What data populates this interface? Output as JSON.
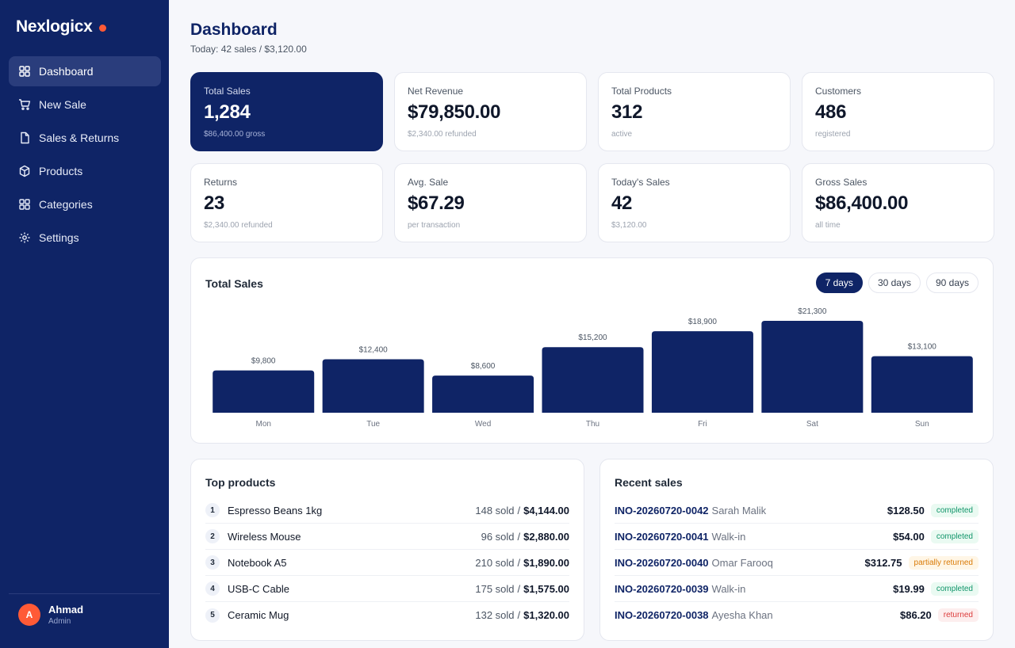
{
  "brand": {
    "name": "Nexlogicx",
    "dot_color": "#ff5a36"
  },
  "sidebar": {
    "items": [
      {
        "label": "Dashboard",
        "icon": "grid-icon",
        "active": true
      },
      {
        "label": "New Sale",
        "icon": "cart-icon"
      },
      {
        "label": "Sales & Returns",
        "icon": "document-icon"
      },
      {
        "label": "Products",
        "icon": "box-icon"
      },
      {
        "label": "Categories",
        "icon": "grid-icon"
      },
      {
        "label": "Settings",
        "icon": "gear-icon"
      }
    ],
    "user": {
      "initial": "A",
      "name": "Ahmad",
      "role": "Admin"
    }
  },
  "header": {
    "title": "Dashboard",
    "subtitle": "Today: 42 sales / $3,120.00"
  },
  "stats": [
    {
      "label": "Total Sales",
      "value": "1,284",
      "note": "$86,400.00 gross"
    },
    {
      "label": "Net Revenue",
      "value": "$79,850.00",
      "note": "$2,340.00 refunded"
    },
    {
      "label": "Total Products",
      "value": "312",
      "note": "active"
    },
    {
      "label": "Customers",
      "value": "486",
      "note": "registered"
    },
    {
      "label": "Returns",
      "value": "23",
      "note": "$2,340.00 refunded"
    },
    {
      "label": "Avg. Sale",
      "value": "$67.29",
      "note": "per transaction"
    },
    {
      "label": "Today's Sales",
      "value": "42",
      "note": "$3,120.00"
    },
    {
      "label": "Gross Sales",
      "value": "$86,400.00",
      "note": "all time"
    }
  ],
  "chart_section": {
    "title": "Total Sales",
    "ranges": [
      "7 days",
      "30 days",
      "90 days"
    ],
    "active_range": "7 days"
  },
  "chart_data": {
    "type": "bar",
    "categories": [
      "Mon",
      "Tue",
      "Wed",
      "Thu",
      "Fri",
      "Sat",
      "Sun"
    ],
    "values": [
      9800,
      12400,
      8600,
      15200,
      18900,
      21300,
      13100
    ],
    "value_labels": [
      "$9,800",
      "$12,400",
      "$8,600",
      "$15,200",
      "$18,900",
      "$21,300",
      "$13,100"
    ],
    "title": "Total Sales",
    "xlabel": "",
    "ylabel": "",
    "grid": false,
    "bar_color": "#0f2466"
  },
  "top_products": {
    "title": "Top products",
    "items": [
      {
        "rank": "1",
        "name": "Espresso Beans 1kg",
        "sold": "148 sold",
        "amount": "$4,144.00"
      },
      {
        "rank": "2",
        "name": "Wireless Mouse",
        "sold": "96 sold",
        "amount": "$2,880.00"
      },
      {
        "rank": "3",
        "name": "Notebook A5",
        "sold": "210 sold",
        "amount": "$1,890.00"
      },
      {
        "rank": "4",
        "name": "USB-C Cable",
        "sold": "175 sold",
        "amount": "$1,575.00"
      },
      {
        "rank": "5",
        "name": "Ceramic Mug",
        "sold": "132 sold",
        "amount": "$1,320.00"
      }
    ]
  },
  "recent_sales": {
    "title": "Recent sales",
    "items": [
      {
        "id": "INO-20260720-0042",
        "customer": "Sarah Malik",
        "amount": "$128.50",
        "status": "completed",
        "status_class": "completed"
      },
      {
        "id": "INO-20260720-0041",
        "customer": "Walk-in",
        "amount": "$54.00",
        "status": "completed",
        "status_class": "completed"
      },
      {
        "id": "INO-20260720-0040",
        "customer": "Omar Farooq",
        "amount": "$312.75",
        "status": "partially returned",
        "status_class": "partial"
      },
      {
        "id": "INO-20260720-0039",
        "customer": "Walk-in",
        "amount": "$19.99",
        "status": "completed",
        "status_class": "completed"
      },
      {
        "id": "INO-20260720-0038",
        "customer": "Ayesha Khan",
        "amount": "$86.20",
        "status": "returned",
        "status_class": "returned"
      }
    ]
  }
}
